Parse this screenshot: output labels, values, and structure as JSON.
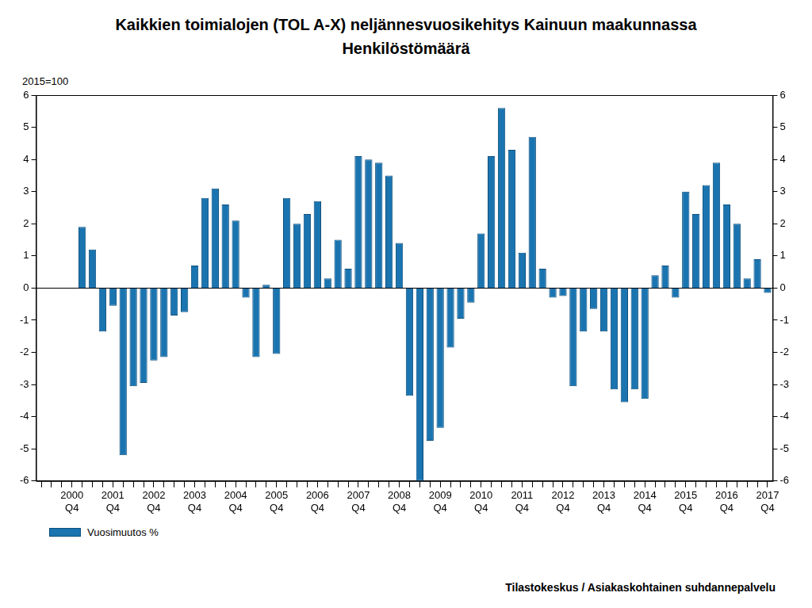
{
  "chart_data": {
    "type": "bar",
    "title": "Kaikkien toimialojen (TOL A-X) neljännesvuosikehitys Kainuun maakunnassa",
    "subtitle": "Henkilöstömäärä",
    "y_label": "2015=100",
    "source": "Tilastokeskus / Asiakaskohtainen suhdannepalvelu",
    "categories": [
      null,
      null,
      null,
      "2000 Q4",
      null,
      null,
      null,
      "2001 Q4",
      null,
      null,
      null,
      "2002 Q4",
      null,
      null,
      null,
      "2003 Q4",
      null,
      null,
      null,
      "2004 Q4",
      null,
      null,
      null,
      "2005 Q4",
      null,
      null,
      null,
      "2006 Q4",
      null,
      null,
      null,
      "2007 Q4",
      null,
      null,
      null,
      "2008 Q4",
      null,
      null,
      null,
      "2009 Q4",
      null,
      null,
      null,
      "2010 Q4",
      null,
      null,
      null,
      "2011 Q4",
      null,
      null,
      null,
      "2012 Q4",
      null,
      null,
      null,
      "2013 Q4",
      null,
      null,
      null,
      "2014 Q4",
      null,
      null,
      null,
      "2015 Q4",
      null,
      null,
      null,
      "2016 Q4",
      null,
      null,
      null,
      "2017 Q4"
    ],
    "series": [
      {
        "name": "Vuosimuutos %",
        "color": "#1a74b0",
        "values": [
          null,
          null,
          null,
          null,
          1.9,
          1.2,
          -1.35,
          -0.55,
          -5.2,
          -3.05,
          -2.95,
          -2.25,
          -2.15,
          -0.85,
          -0.75,
          0.7,
          2.8,
          3.1,
          2.6,
          2.1,
          -0.3,
          -2.15,
          0.1,
          -2.05,
          2.8,
          2.0,
          2.3,
          2.7,
          0.3,
          1.5,
          0.6,
          4.1,
          4.0,
          3.9,
          3.5,
          1.4,
          -3.35,
          -6.0,
          -4.75,
          -4.35,
          -1.85,
          -0.95,
          -0.45,
          1.7,
          4.1,
          5.6,
          4.3,
          1.1,
          4.7,
          0.6,
          -0.3,
          -0.25,
          -3.05,
          -1.35,
          -0.65,
          -1.35,
          -3.15,
          -3.55,
          -3.15,
          -3.45,
          0.4,
          0.7,
          -0.3,
          3.0,
          2.3,
          3.2,
          3.9,
          2.6,
          2.0,
          0.3,
          0.9,
          -0.15
        ]
      }
    ],
    "ylim": [
      -6,
      6
    ],
    "yticks": [
      -6,
      -5,
      -4,
      -3,
      -2,
      -1,
      0,
      1,
      2,
      3,
      4,
      5,
      6
    ],
    "y2lim": [
      -6,
      6
    ],
    "y2ticks": [
      -6,
      -5,
      -4,
      -3,
      -2,
      -1,
      0,
      1,
      2,
      3,
      4,
      5,
      6
    ],
    "grid": false,
    "legend": "bottom-left"
  }
}
